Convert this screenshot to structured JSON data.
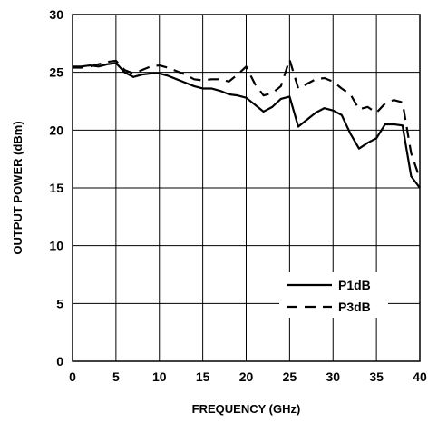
{
  "chart_data": {
    "type": "line",
    "title": "",
    "xlabel": "FREQUENCY (GHz)",
    "ylabel": "OUTPUT POWER (dBm)",
    "xlim": [
      0,
      40
    ],
    "ylim": [
      0,
      30
    ],
    "xticks": [
      0,
      5,
      10,
      15,
      20,
      25,
      30,
      35,
      40
    ],
    "yticks": [
      0,
      5,
      10,
      15,
      20,
      25,
      30
    ],
    "grid": true,
    "legend_position": "bottom-right",
    "series": [
      {
        "name": "P1dB",
        "style": "solid",
        "x": [
          0,
          1,
          2,
          3,
          4,
          5,
          6,
          7,
          8,
          9,
          10,
          11,
          12,
          13,
          14,
          15,
          16,
          17,
          18,
          19,
          20,
          21,
          22,
          23,
          24,
          25,
          26,
          27,
          28,
          29,
          30,
          31,
          32,
          33,
          34,
          35,
          36,
          37,
          38,
          39,
          40
        ],
        "values": [
          25.5,
          25.5,
          25.6,
          25.5,
          25.7,
          25.8,
          25.0,
          24.6,
          24.8,
          24.9,
          24.9,
          24.7,
          24.4,
          24.1,
          23.8,
          23.6,
          23.6,
          23.4,
          23.1,
          23.0,
          22.8,
          22.2,
          21.6,
          22.0,
          22.7,
          22.9,
          20.3,
          20.9,
          21.5,
          21.9,
          21.7,
          21.3,
          19.7,
          18.4,
          18.9,
          19.3,
          20.5,
          20.5,
          20.4,
          16.0,
          15.0
        ]
      },
      {
        "name": "P3dB",
        "style": "dashed",
        "x": [
          0,
          1,
          2,
          3,
          4,
          5,
          6,
          7,
          8,
          9,
          10,
          11,
          12,
          13,
          14,
          15,
          16,
          17,
          18,
          19,
          20,
          21,
          22,
          23,
          24,
          25,
          26,
          27,
          28,
          29,
          30,
          31,
          32,
          33,
          34,
          35,
          36,
          37,
          38,
          39,
          40
        ],
        "values": [
          25.4,
          25.4,
          25.5,
          25.7,
          25.9,
          26.0,
          25.2,
          24.9,
          25.2,
          25.5,
          25.6,
          25.4,
          25.1,
          24.8,
          24.4,
          24.3,
          24.4,
          24.4,
          24.2,
          24.8,
          25.5,
          24.0,
          23.0,
          23.2,
          23.8,
          26.1,
          23.6,
          24.0,
          24.4,
          24.5,
          24.2,
          23.6,
          23.1,
          21.8,
          22.0,
          21.5,
          22.3,
          22.6,
          22.4,
          18.0,
          15.8
        ]
      }
    ]
  }
}
